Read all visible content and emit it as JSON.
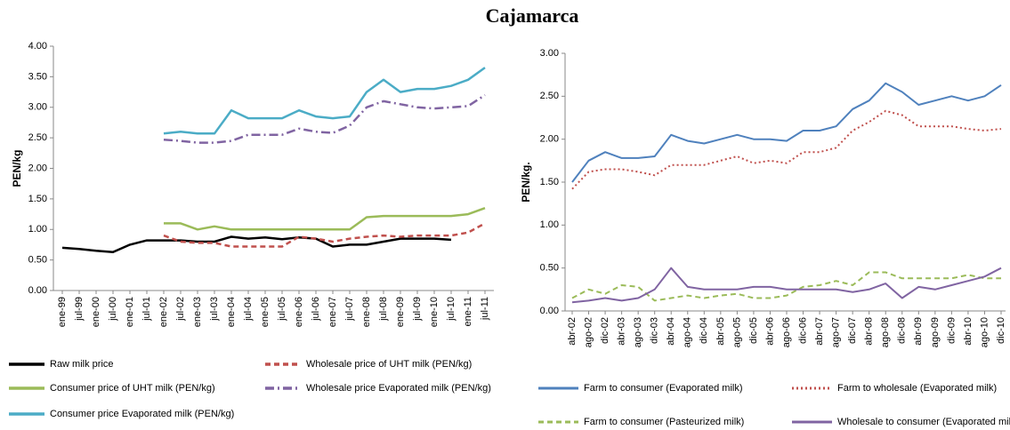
{
  "title": "Cajamarca",
  "chart_data": [
    {
      "type": "line",
      "ylabel": "PEN/kg",
      "categories": [
        "ene-99",
        "jul-99",
        "ene-00",
        "jul-00",
        "ene-01",
        "jul-01",
        "ene-02",
        "jul-02",
        "ene-03",
        "jul-03",
        "ene-04",
        "jul-04",
        "ene-05",
        "jul-05",
        "ene-06",
        "jul-06",
        "ene-07",
        "jul-07",
        "ene-08",
        "jul-08",
        "ene-09",
        "jul-09",
        "ene-10",
        "jul-10",
        "ene-11",
        "jul-11"
      ],
      "ylim": [
        0,
        4
      ],
      "yticks": [
        {
          "value": 0,
          "label": "0.00"
        },
        {
          "value": 0.5,
          "label": "0.50"
        },
        {
          "value": 1,
          "label": "1.00"
        },
        {
          "value": 1.5,
          "label": "1.50"
        },
        {
          "value": 2,
          "label": "2.00"
        },
        {
          "value": 2.5,
          "label": "2.50"
        },
        {
          "value": 3,
          "label": "3.00"
        },
        {
          "value": 3.5,
          "label": "3.50"
        },
        {
          "value": 4,
          "label": "4.00"
        }
      ],
      "grid": false,
      "series": [
        {
          "name": "Raw milk price",
          "color": "#000000",
          "dash": "solid",
          "values": [
            0.7,
            0.68,
            0.65,
            0.63,
            0.75,
            0.82,
            0.82,
            0.82,
            0.8,
            0.8,
            0.88,
            0.85,
            0.87,
            0.84,
            0.87,
            0.85,
            0.72,
            0.75,
            0.75,
            0.8,
            0.85,
            0.85,
            0.85,
            0.83,
            null,
            null
          ]
        },
        {
          "name": "Wholesale price of  UHT milk (PEN/kg)",
          "color": "#c0504d",
          "dash": "dashed",
          "values": [
            null,
            null,
            null,
            null,
            null,
            null,
            0.9,
            0.8,
            0.78,
            0.78,
            0.72,
            0.72,
            0.72,
            0.72,
            0.88,
            0.85,
            0.8,
            0.85,
            0.88,
            0.9,
            0.88,
            0.9,
            0.9,
            0.9,
            0.95,
            1.1
          ]
        },
        {
          "name": "Consumer price of  UHT milk (PEN/kg)",
          "color": "#9bbb59",
          "dash": "solid",
          "values": [
            null,
            null,
            null,
            null,
            null,
            null,
            1.1,
            1.1,
            1.0,
            1.05,
            1.0,
            1.0,
            1.0,
            1.0,
            1.0,
            1.0,
            1.0,
            1.0,
            1.2,
            1.22,
            1.22,
            1.22,
            1.22,
            1.22,
            1.25,
            1.35
          ]
        },
        {
          "name": "Wholesale price Evaporated milk (PEN/kg)",
          "color": "#8064a2",
          "dash": "dashdot",
          "values": [
            null,
            null,
            null,
            null,
            null,
            null,
            2.47,
            2.45,
            2.42,
            2.42,
            2.45,
            2.55,
            2.55,
            2.55,
            2.65,
            2.6,
            2.58,
            2.7,
            3.0,
            3.1,
            3.05,
            3.0,
            2.98,
            3.0,
            3.02,
            3.2
          ]
        },
        {
          "name": "Consumer price Evaporated milk (PEN/kg)",
          "color": "#4bacc6",
          "dash": "solid",
          "values": [
            null,
            null,
            null,
            null,
            null,
            null,
            2.57,
            2.6,
            2.57,
            2.57,
            2.95,
            2.82,
            2.82,
            2.82,
            2.95,
            2.85,
            2.82,
            2.85,
            3.25,
            3.45,
            3.25,
            3.3,
            3.3,
            3.35,
            3.45,
            3.65
          ]
        }
      ]
    },
    {
      "type": "line",
      "ylabel": "PEN/kg.",
      "categories": [
        "abr-02",
        "ago-02",
        "dic-02",
        "abr-03",
        "ago-03",
        "dic-03",
        "abr-04",
        "ago-04",
        "dic-04",
        "abr-05",
        "ago-05",
        "dic-05",
        "abr-06",
        "ago-06",
        "dic-06",
        "abr-07",
        "ago-07",
        "dic-07",
        "abr-08",
        "ago-08",
        "dic-08",
        "abr-09",
        "ago-09",
        "dic-09",
        "abr-10",
        "ago-10",
        "dic-10"
      ],
      "ylim": [
        0,
        3
      ],
      "yticks": [
        {
          "value": 0,
          "label": "0.00"
        },
        {
          "value": 0.5,
          "label": "0.50"
        },
        {
          "value": 1,
          "label": "1.00"
        },
        {
          "value": 1.5,
          "label": "1.50"
        },
        {
          "value": 2,
          "label": "2.00"
        },
        {
          "value": 2.5,
          "label": "2.50"
        },
        {
          "value": 3,
          "label": "3.00"
        }
      ],
      "grid": false,
      "series": [
        {
          "name": "Farm to consumer (Evaporated milk)",
          "color": "#4f81bd",
          "dash": "solid",
          "values": [
            1.5,
            1.75,
            1.85,
            1.78,
            1.78,
            1.8,
            2.05,
            1.98,
            1.95,
            2.0,
            2.05,
            2.0,
            2.0,
            1.98,
            2.1,
            2.1,
            2.15,
            2.35,
            2.45,
            2.65,
            2.55,
            2.4,
            2.45,
            2.5,
            2.45,
            2.5,
            2.63
          ]
        },
        {
          "name": "Farm to wholesale  (Evaporated milk)",
          "color": "#c0504d",
          "dash": "dotted",
          "values": [
            1.42,
            1.62,
            1.65,
            1.65,
            1.62,
            1.58,
            1.7,
            1.7,
            1.7,
            1.75,
            1.8,
            1.72,
            1.75,
            1.72,
            1.85,
            1.85,
            1.9,
            2.1,
            2.2,
            2.33,
            2.28,
            2.15,
            2.15,
            2.15,
            2.12,
            2.1,
            2.12
          ]
        },
        {
          "name": "Farm to consumer (Pasteurized milk)",
          "color": "#9bbb59",
          "dash": "dashed",
          "values": [
            0.15,
            0.25,
            0.2,
            0.3,
            0.28,
            0.12,
            0.15,
            0.18,
            0.15,
            0.18,
            0.2,
            0.15,
            0.15,
            0.18,
            0.28,
            0.3,
            0.35,
            0.3,
            0.45,
            0.45,
            0.38,
            0.38,
            0.38,
            0.38,
            0.42,
            0.38,
            0.38
          ]
        },
        {
          "name": "Wholesale to consumer (Evaporated milk)",
          "color": "#8064a2",
          "dash": "solid",
          "values": [
            0.1,
            0.12,
            0.15,
            0.12,
            0.15,
            0.25,
            0.5,
            0.28,
            0.25,
            0.25,
            0.25,
            0.28,
            0.28,
            0.25,
            0.25,
            0.25,
            0.25,
            0.22,
            0.25,
            0.32,
            0.15,
            0.28,
            0.25,
            0.3,
            0.35,
            0.4,
            0.5
          ]
        }
      ]
    }
  ]
}
